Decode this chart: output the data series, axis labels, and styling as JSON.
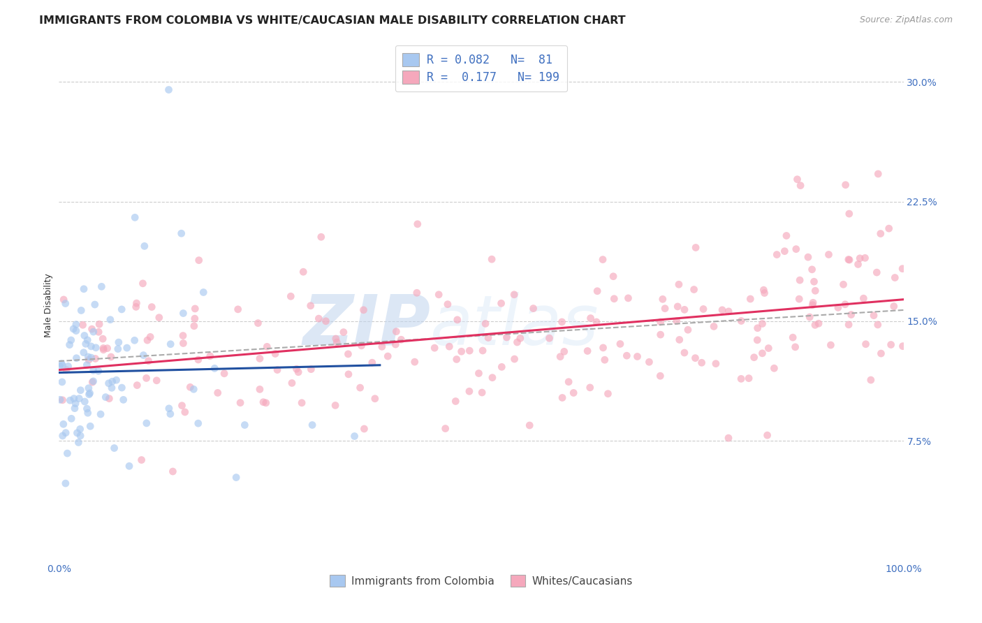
{
  "title": "IMMIGRANTS FROM COLOMBIA VS WHITE/CAUCASIAN MALE DISABILITY CORRELATION CHART",
  "source": "Source: ZipAtlas.com",
  "ylabel": "Male Disability",
  "watermark_zip": "ZIP",
  "watermark_atlas": "atlas",
  "xlim": [
    0.0,
    1.0
  ],
  "ylim": [
    0.0,
    0.32
  ],
  "yticks": [
    0.075,
    0.15,
    0.225,
    0.3
  ],
  "ytick_labels": [
    "7.5%",
    "15.0%",
    "22.5%",
    "30.0%"
  ],
  "xtick_labels": [
    "0.0%",
    "100.0%"
  ],
  "xtick_pos": [
    0.0,
    1.0
  ],
  "blue_R": 0.082,
  "blue_N": 81,
  "pink_R": 0.177,
  "pink_N": 199,
  "blue_color": "#A8C8F0",
  "pink_color": "#F5A8BC",
  "blue_line_color": "#2050A0",
  "pink_line_color": "#E03060",
  "dash_line_color": "#AAAAAA",
  "tick_label_color": "#4070C0",
  "background_color": "#FFFFFF",
  "grid_color": "#CCCCCC",
  "title_fontsize": 11.5,
  "source_fontsize": 9,
  "tick_fontsize": 10,
  "ylabel_fontsize": 9,
  "legend_fontsize": 12,
  "scatter_size": 60,
  "scatter_alpha": 0.65,
  "seed": 7
}
